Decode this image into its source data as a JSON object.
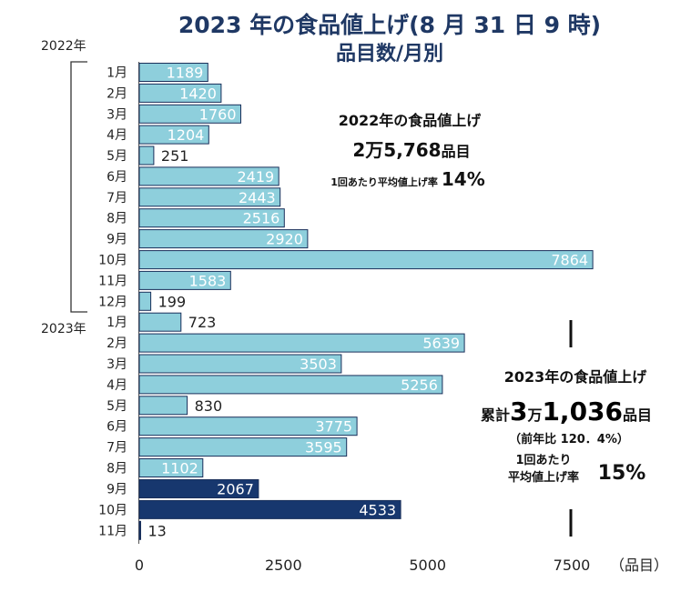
{
  "chart_data": {
    "type": "bar",
    "orientation": "horizontal",
    "title": "2023 年の食品値上げ(8 月 31 日 9 時)",
    "subtitle": "品目数/月別",
    "xlim": [
      0,
      7500
    ],
    "xticks": [
      "0",
      "2500",
      "5000",
      "7500"
    ],
    "xunit": "（品目）",
    "year_labels": [
      "2022年",
      "2023年"
    ],
    "categories": [
      "1月",
      "2月",
      "3月",
      "4月",
      "5月",
      "6月",
      "7月",
      "8月",
      "9月",
      "10月",
      "11月",
      "12月",
      "1月",
      "2月",
      "3月",
      "4月",
      "5月",
      "6月",
      "7月",
      "8月",
      "9月",
      "10月",
      "11月"
    ],
    "years": [
      2022,
      2022,
      2022,
      2022,
      2022,
      2022,
      2022,
      2022,
      2022,
      2022,
      2022,
      2022,
      2023,
      2023,
      2023,
      2023,
      2023,
      2023,
      2023,
      2023,
      2023,
      2023,
      2023
    ],
    "values": [
      1189,
      1420,
      1760,
      1204,
      251,
      2419,
      2443,
      2516,
      2920,
      7864,
      1583,
      199,
      723,
      5639,
      3503,
      5256,
      830,
      3775,
      3595,
      1102,
      2067,
      4533,
      13
    ],
    "value_labels": [
      "1189",
      "1420",
      "1760",
      "1204",
      "251",
      "2419",
      "2443",
      "2516",
      "2920",
      "7864",
      "1583",
      "199",
      "723",
      "5639",
      "3503",
      "5256",
      "830",
      "3775",
      "3595",
      "1102",
      "2067",
      "4533",
      "13"
    ],
    "highlight": [
      false,
      false,
      false,
      false,
      false,
      false,
      false,
      false,
      false,
      false,
      false,
      false,
      false,
      false,
      false,
      false,
      false,
      false,
      false,
      false,
      true,
      true,
      true
    ],
    "colors": {
      "normal": "#8ecfdc",
      "highlight": "#17376e",
      "title": "#1f3864"
    }
  },
  "annotations": {
    "y2022": {
      "heading": "2022年の食品値上げ",
      "total_prefix": "2万5,768",
      "total_suffix": "品目",
      "rate_label": "1回あたり平均値上げ率",
      "rate_value": "14%"
    },
    "y2023": {
      "heading": "2023年の食品値上げ",
      "cum_label": "累計",
      "total_a": "3",
      "total_b": "万",
      "total_c": "1,036",
      "total_d": "品目",
      "yoy": "（前年比 120．4%）",
      "rate_label_1": "1回あたり",
      "rate_label_2": "平均値上げ率",
      "rate_value": "15%"
    }
  }
}
